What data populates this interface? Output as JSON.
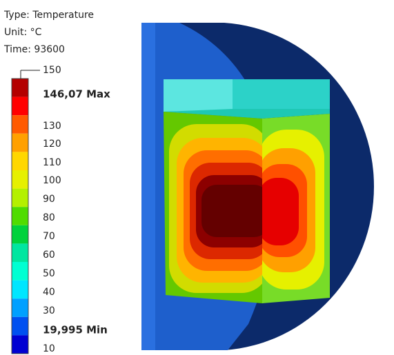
{
  "info": [
    "Type: Temperature",
    "Unit: °C",
    "Time: 93600"
  ],
  "legend": {
    "labels": [
      "150",
      "146,07 Max",
      "130",
      "120",
      "110",
      "100",
      "90",
      "80",
      "70",
      "60",
      "50",
      "40",
      "30",
      "19,995 Min",
      "10"
    ],
    "colors": [
      "#b40000",
      "#ff0000",
      "#ff5a00",
      "#ffa000",
      "#ffd700",
      "#e6f000",
      "#b4f000",
      "#50dc00",
      "#00d23c",
      "#00e6a0",
      "#00ffd2",
      "#00e6ff",
      "#00a0ff",
      "#0050f0",
      "#0000d2"
    ]
  }
}
